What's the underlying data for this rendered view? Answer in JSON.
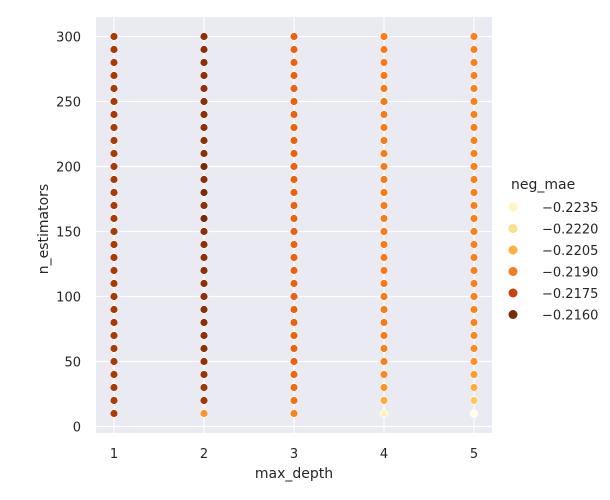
{
  "chart_data": {
    "type": "scatter",
    "xlabel": "max_depth",
    "ylabel": "n_estimators",
    "xlim": [
      0.8,
      5.2
    ],
    "ylim": [
      -5,
      315
    ],
    "x_ticks": [
      1,
      2,
      3,
      4,
      5
    ],
    "y_ticks": [
      0,
      50,
      100,
      150,
      200,
      250,
      300
    ],
    "grid": true,
    "legend": {
      "title": "neg_mae",
      "placement": "right",
      "entries": [
        {
          "label": "−0.2235",
          "color": "#fff5c6"
        },
        {
          "label": "−0.2220",
          "color": "#fedf8a"
        },
        {
          "label": "−0.2205",
          "color": "#fdb03f"
        },
        {
          "label": "−0.2190",
          "color": "#f47c1d"
        },
        {
          "label": "−0.2175",
          "color": "#c9440a"
        },
        {
          "label": "−0.2160",
          "color": "#7a2b08"
        }
      ]
    },
    "colormap": {
      "stops": [
        {
          "value": -0.224,
          "color": "#ffffe5"
        },
        {
          "value": -0.2225,
          "color": "#fff0b4"
        },
        {
          "value": -0.221,
          "color": "#fec34e"
        },
        {
          "value": -0.2195,
          "color": "#f98b23"
        },
        {
          "value": -0.218,
          "color": "#e6600f"
        },
        {
          "value": -0.217,
          "color": "#b03b06"
        },
        {
          "value": -0.2158,
          "color": "#6a2506"
        }
      ]
    },
    "series": [
      {
        "x": 1,
        "n_estimators": [
          10,
          20,
          30,
          40,
          50,
          60,
          70,
          80,
          90,
          100,
          110,
          120,
          130,
          140,
          150,
          160,
          170,
          180,
          190,
          200,
          210,
          220,
          230,
          240,
          250,
          260,
          270,
          280,
          290,
          300
        ],
        "neg_mae": [
          -0.217,
          -0.217,
          -0.2169,
          -0.2169,
          -0.2169,
          -0.2169,
          -0.2169,
          -0.2169,
          -0.2169,
          -0.2169,
          -0.2169,
          -0.2169,
          -0.2169,
          -0.2169,
          -0.2169,
          -0.2169,
          -0.2169,
          -0.2169,
          -0.2169,
          -0.2169,
          -0.2169,
          -0.2169,
          -0.2169,
          -0.2169,
          -0.2169,
          -0.2169,
          -0.2169,
          -0.2169,
          -0.2169,
          -0.2169
        ]
      },
      {
        "x": 2,
        "n_estimators": [
          10,
          20,
          30,
          40,
          50,
          60,
          70,
          80,
          90,
          100,
          110,
          120,
          130,
          140,
          150,
          160,
          170,
          180,
          190,
          200,
          210,
          220,
          230,
          240,
          250,
          260,
          270,
          280,
          290,
          300
        ],
        "neg_mae": [
          -0.2198,
          -0.2168,
          -0.2167,
          -0.2166,
          -0.2165,
          -0.2164,
          -0.2164,
          -0.2164,
          -0.2164,
          -0.2164,
          -0.2164,
          -0.2164,
          -0.2164,
          -0.2164,
          -0.2164,
          -0.216,
          -0.2164,
          -0.2161,
          -0.2164,
          -0.2161,
          -0.2164,
          -0.2164,
          -0.2164,
          -0.2164,
          -0.2164,
          -0.2164,
          -0.2164,
          -0.2164,
          -0.2164,
          -0.2164
        ]
      },
      {
        "x": 3,
        "n_estimators": [
          10,
          20,
          30,
          40,
          50,
          60,
          70,
          80,
          90,
          100,
          110,
          120,
          130,
          140,
          150,
          160,
          170,
          180,
          190,
          200,
          210,
          220,
          230,
          240,
          250,
          260,
          270,
          280,
          290,
          300
        ],
        "neg_mae": [
          -0.2193,
          -0.2187,
          -0.2184,
          -0.2182,
          -0.2181,
          -0.2181,
          -0.2181,
          -0.2181,
          -0.2181,
          -0.2181,
          -0.2181,
          -0.2181,
          -0.2181,
          -0.2181,
          -0.2181,
          -0.2181,
          -0.2181,
          -0.2181,
          -0.2181,
          -0.2181,
          -0.2181,
          -0.2181,
          -0.2181,
          -0.2181,
          -0.2181,
          -0.2181,
          -0.2181,
          -0.2181,
          -0.2181,
          -0.2181
        ]
      },
      {
        "x": 4,
        "n_estimators": [
          10,
          20,
          30,
          40,
          50,
          60,
          70,
          80,
          90,
          100,
          110,
          120,
          130,
          140,
          150,
          160,
          170,
          180,
          190,
          200,
          210,
          220,
          230,
          240,
          250,
          260,
          270,
          280,
          290,
          300
        ],
        "neg_mae": [
          -0.2228,
          -0.2204,
          -0.2197,
          -0.2194,
          -0.2192,
          -0.2191,
          -0.219,
          -0.219,
          -0.219,
          -0.219,
          -0.219,
          -0.219,
          -0.219,
          -0.219,
          -0.219,
          -0.219,
          -0.219,
          -0.219,
          -0.219,
          -0.219,
          -0.219,
          -0.219,
          -0.219,
          -0.219,
          -0.219,
          -0.219,
          -0.219,
          -0.219,
          -0.219,
          -0.219
        ]
      },
      {
        "x": 5,
        "n_estimators": [
          10,
          20,
          30,
          40,
          50,
          60,
          70,
          80,
          90,
          100,
          110,
          120,
          130,
          140,
          150,
          160,
          170,
          180,
          190,
          200,
          210,
          220,
          230,
          240,
          250,
          260,
          270,
          280,
          290,
          300
        ],
        "neg_mae": [
          -0.224,
          -0.2212,
          -0.2204,
          -0.22,
          -0.2197,
          -0.2195,
          -0.2194,
          -0.2193,
          -0.2193,
          -0.2192,
          -0.2192,
          -0.2192,
          -0.2192,
          -0.2192,
          -0.2192,
          -0.2192,
          -0.2192,
          -0.2192,
          -0.2192,
          -0.2192,
          -0.2192,
          -0.2192,
          -0.2192,
          -0.2192,
          -0.2192,
          -0.2192,
          -0.2192,
          -0.2192,
          -0.2192,
          -0.2192
        ]
      }
    ]
  },
  "colors": {
    "plot_background": "#eaeaf2",
    "grid": "#ffffff",
    "text": "#262626"
  }
}
